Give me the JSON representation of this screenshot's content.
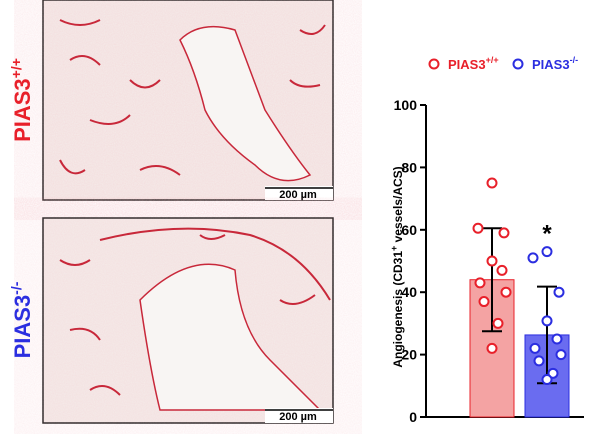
{
  "panels": [
    {
      "label": {
        "text": "PIAS3",
        "sup": "+/+"
      },
      "color": "#e8202a",
      "scale_bar": "200 µm"
    },
    {
      "label": {
        "text": "PIAS3",
        "sup": "-/-"
      },
      "color": "#2b2ee0",
      "scale_bar": "200 µm"
    }
  ],
  "chart_data": {
    "type": "bar",
    "ylabel": [
      "Angiogenesis  (CD31",
      "+",
      " vessels/ACS)"
    ],
    "categories": [
      null,
      null
    ],
    "values": [
      44,
      26.3
    ],
    "errors": [
      16.5,
      15.5
    ],
    "colors": [
      "#f4a3a3",
      "#6a6cf0"
    ],
    "point_colors": [
      "#e8202a",
      "#2b2ee0"
    ],
    "points": [
      [
        75,
        60.5,
        59,
        50,
        47,
        43,
        40,
        37,
        30,
        22
      ],
      [
        53,
        51,
        40,
        30.8,
        25,
        22,
        20,
        18,
        14,
        12
      ]
    ],
    "legend": [
      {
        "text": "PIAS3",
        "sup": "+/+",
        "color": "#e8202a"
      },
      {
        "text": "PIAS3",
        "sup": "-/-",
        "color": "#2b2ee0"
      }
    ],
    "legend_position": "top",
    "annotations": [
      {
        "text": "*",
        "category": 1
      }
    ],
    "ylim": [
      0,
      100
    ],
    "yticks": [
      0,
      20,
      40,
      60,
      80,
      100
    ]
  }
}
